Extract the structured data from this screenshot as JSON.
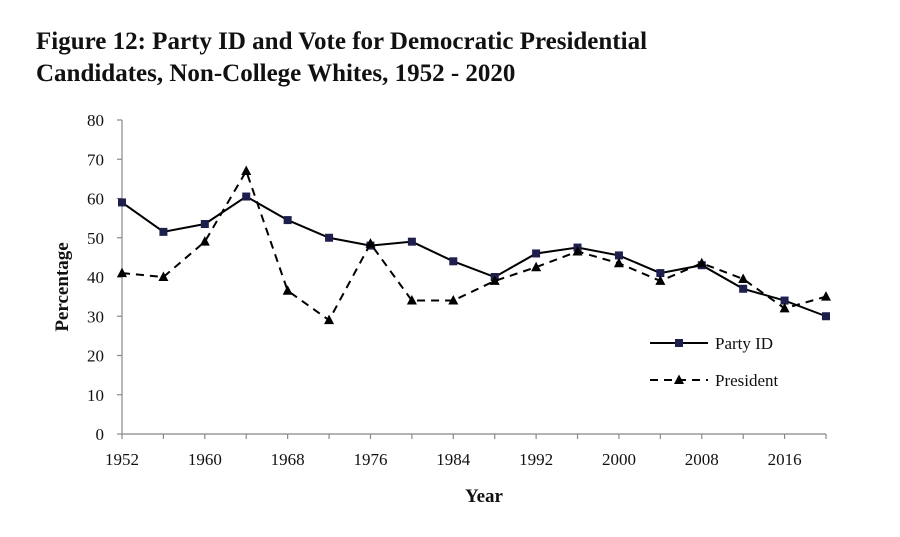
{
  "chart_data": {
    "type": "line",
    "title": "Figure 12: Party ID and Vote for Democratic Presidential Candidates, Non-College Whites, 1952 - 2020",
    "xlabel": "Year",
    "ylabel": "Percentage",
    "x": [
      1952,
      1956,
      1960,
      1964,
      1968,
      1972,
      1976,
      1980,
      1984,
      1988,
      1992,
      1996,
      2000,
      2004,
      2008,
      2012,
      2016,
      2020
    ],
    "xticks": [
      "1952",
      "1960",
      "1968",
      "1976",
      "1984",
      "1992",
      "2000",
      "2008",
      "2016"
    ],
    "yticks": [
      "0",
      "10",
      "20",
      "30",
      "40",
      "50",
      "60",
      "70",
      "80"
    ],
    "xlim": [
      1952,
      2020
    ],
    "ylim": [
      0,
      80
    ],
    "grid": false,
    "legend_position": "right",
    "series": [
      {
        "name": "Party ID",
        "style": "solid",
        "marker": "square",
        "color": "#000000",
        "marker_color": "#1f1f4e",
        "values": [
          59,
          51.5,
          53.5,
          60.5,
          54.5,
          50,
          48,
          49,
          44,
          40,
          46,
          47.5,
          45.5,
          41,
          43,
          37,
          34,
          30
        ]
      },
      {
        "name": "President",
        "style": "dashed",
        "marker": "triangle",
        "color": "#000000",
        "marker_color": "#000000",
        "values": [
          41,
          40,
          49,
          67,
          36.5,
          29,
          48.5,
          34,
          34,
          39,
          42.5,
          46.5,
          43.5,
          39,
          43.5,
          39.5,
          32,
          35
        ]
      }
    ]
  }
}
